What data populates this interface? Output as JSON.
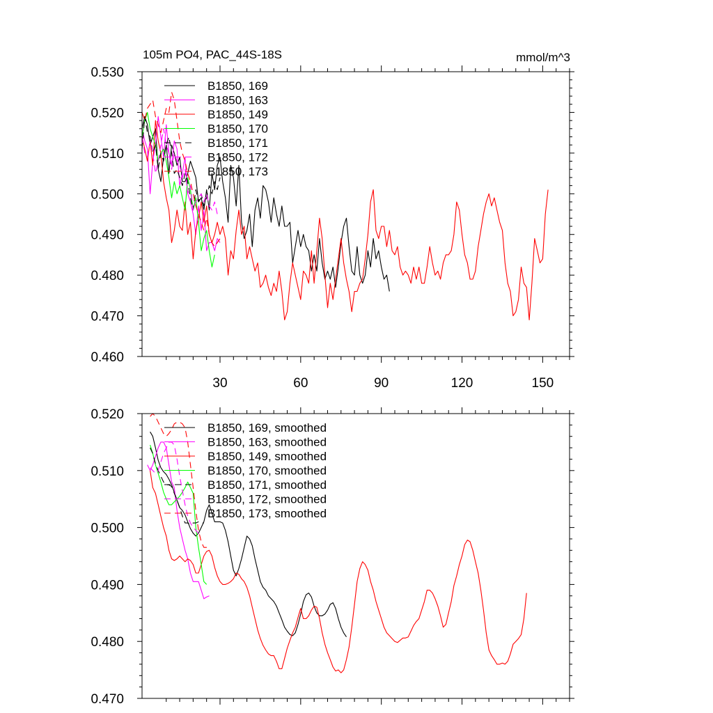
{
  "figure": {
    "title": "105m PO4, PAC_44S-18S",
    "units": "mmol/m^3"
  },
  "series_style": [
    {
      "run": "169",
      "color": "#000000",
      "dash": "solid"
    },
    {
      "run": "163",
      "color": "#ff00ff",
      "dash": "solid"
    },
    {
      "run": "149",
      "color": "#ff0000",
      "dash": "solid"
    },
    {
      "run": "170",
      "color": "#00ff00",
      "dash": "solid"
    },
    {
      "run": "171",
      "color": "#000000",
      "dash": "dashed"
    },
    {
      "run": "172",
      "color": "#ff00ff",
      "dash": "dashed"
    },
    {
      "run": "173",
      "color": "#ff0000",
      "dash": "dashed"
    }
  ],
  "chart_data": [
    {
      "type": "line",
      "title": "105m PO4, PAC_44S-18S",
      "units_label": "mmol/m^3",
      "xlabel": "",
      "ylabel": "",
      "xlim": [
        1,
        160
      ],
      "ylim": [
        0.46,
        0.53
      ],
      "xticks": [
        30,
        60,
        90,
        120,
        150
      ],
      "yticks": [
        "0.460",
        "0.470",
        "0.480",
        "0.490",
        "0.500",
        "0.510",
        "0.520",
        "0.530"
      ],
      "legend_position": "top-left",
      "series": [
        {
          "name": "B1850, 169",
          "x_start": 1,
          "values": [
            0.516,
            0.519,
            0.517,
            0.512,
            0.514,
            0.516,
            0.506,
            0.503,
            0.509,
            0.512,
            0.505,
            0.512,
            0.51,
            0.507,
            0.509,
            0.503,
            0.503,
            0.505,
            0.508,
            0.506,
            0.504,
            0.498,
            0.499,
            0.496,
            0.501,
            0.496,
            0.505,
            0.501,
            0.507,
            0.509,
            0.503,
            0.499,
            0.493,
            0.507,
            0.504,
            0.497,
            0.507,
            0.493,
            0.489,
            0.491,
            0.495,
            0.487,
            0.496,
            0.499,
            0.494,
            0.502,
            0.501,
            0.498,
            0.493,
            0.499,
            0.495,
            0.492,
            0.497,
            0.492,
            0.492,
            0.493,
            0.483,
            0.487,
            0.491,
            0.487,
            0.49,
            0.487,
            0.486,
            0.481,
            0.485,
            0.481,
            0.489,
            0.483,
            0.479,
            0.481,
            0.479,
            0.482,
            0.477,
            0.482,
            0.488,
            0.492,
            0.494,
            0.487,
            0.481,
            0.48,
            0.487,
            0.48,
            0.478,
            0.48,
            0.486,
            0.482,
            0.489,
            0.484,
            0.486,
            0.482,
            0.479,
            0.48,
            0.476
          ]
        },
        {
          "name": "B1850, 163",
          "x_start": 1,
          "values": [
            0.516,
            0.513,
            0.511,
            0.5,
            0.508,
            0.512,
            0.519,
            0.514,
            0.509,
            0.517,
            0.51,
            0.507,
            0.513,
            0.511,
            0.502,
            0.505,
            0.509,
            0.5,
            0.498,
            0.495,
            0.49,
            0.497,
            0.491,
            0.496,
            0.486,
            0.488,
            0.488,
            0.486,
            0.489,
            0.488
          ]
        },
        {
          "name": "B1850, 149",
          "x_start": 1,
          "values": [
            0.514,
            0.511,
            0.508,
            0.513,
            0.507,
            0.518,
            0.513,
            0.51,
            0.503,
            0.499,
            0.496,
            0.488,
            0.491,
            0.496,
            0.492,
            0.491,
            0.498,
            0.49,
            0.493,
            0.484,
            0.491,
            0.494,
            0.498,
            0.493,
            0.497,
            0.49,
            0.488,
            0.49,
            0.493,
            0.49,
            0.492,
            0.489,
            0.48,
            0.486,
            0.484,
            0.491,
            0.496,
            0.49,
            0.492,
            0.484,
            0.487,
            0.484,
            0.481,
            0.483,
            0.477,
            0.478,
            0.48,
            0.477,
            0.475,
            0.478,
            0.476,
            0.481,
            0.476,
            0.469,
            0.471,
            0.478,
            0.483,
            0.48,
            0.477,
            0.474,
            0.481,
            0.48,
            0.478,
            0.486,
            0.478,
            0.486,
            0.494,
            0.489,
            0.48,
            0.472,
            0.478,
            0.474,
            0.479,
            0.484,
            0.489,
            0.483,
            0.479,
            0.476,
            0.471,
            0.476,
            0.476,
            0.478,
            0.479,
            0.484,
            0.49,
            0.498,
            0.501,
            0.491,
            0.489,
            0.492,
            0.492,
            0.487,
            0.491,
            0.486,
            0.485,
            0.487,
            0.482,
            0.48,
            0.481,
            0.48,
            0.478,
            0.482,
            0.479,
            0.482,
            0.478,
            0.478,
            0.482,
            0.487,
            0.483,
            0.48,
            0.481,
            0.479,
            0.483,
            0.485,
            0.485,
            0.486,
            0.49,
            0.498,
            0.496,
            0.49,
            0.485,
            0.483,
            0.479,
            0.479,
            0.481,
            0.487,
            0.491,
            0.495,
            0.498,
            0.5,
            0.497,
            0.499,
            0.496,
            0.493,
            0.491,
            0.483,
            0.478,
            0.476,
            0.47,
            0.471,
            0.474,
            0.482,
            0.478,
            0.477,
            0.469,
            0.478,
            0.489,
            0.486,
            0.483,
            0.484,
            0.495,
            0.501
          ]
        },
        {
          "name": "B1850, 170",
          "x_start": 1,
          "values": [
            0.514,
            0.518,
            0.52,
            0.516,
            0.514,
            0.512,
            0.508,
            0.51,
            0.511,
            0.508,
            0.504,
            0.499,
            0.503,
            0.5,
            0.502,
            0.499,
            0.496,
            0.504,
            0.501,
            0.496,
            0.499,
            0.493,
            0.486,
            0.489,
            0.491,
            0.486,
            0.482,
            0.485
          ]
        },
        {
          "name": "B1850, 171",
          "x_start": 1,
          "values": [
            0.511,
            0.519,
            0.515,
            0.514,
            0.51,
            0.512,
            0.506,
            0.51,
            0.508,
            0.512,
            0.514,
            0.51,
            0.505,
            0.506,
            0.504,
            0.502,
            0.505,
            0.503,
            0.499,
            0.496,
            0.501,
            0.498,
            0.5,
            0.497,
            0.499,
            0.502,
            0.5,
            0.503,
            0.501,
            0.504
          ]
        },
        {
          "name": "B1850, 172",
          "x_start": 1,
          "values": [
            0.514,
            0.51,
            0.509,
            0.513,
            0.51,
            0.505,
            0.508,
            0.512,
            0.516,
            0.512,
            0.51,
            0.506,
            0.51,
            0.508,
            0.507,
            0.504,
            0.506,
            0.5,
            0.502,
            0.496,
            0.498,
            0.499,
            0.5,
            0.498,
            0.5,
            0.497,
            0.496,
            0.498,
            0.495
          ]
        },
        {
          "name": "B1850, 173",
          "x_start": 1,
          "values": [
            0.52,
            0.518,
            0.521,
            0.522,
            0.523,
            0.519,
            0.517,
            0.515,
            0.518,
            0.521,
            0.52,
            0.525,
            0.523,
            0.518,
            0.513,
            0.51,
            0.508,
            0.505,
            0.503,
            0.5,
            0.497,
            0.495,
            0.493,
            0.491,
            0.494,
            0.49,
            0.488,
            0.487,
            0.488,
            0.489
          ]
        }
      ]
    },
    {
      "type": "line",
      "title": "",
      "xlabel": "",
      "ylabel": "",
      "xlim": [
        1,
        160
      ],
      "ylim": [
        0.47,
        0.52
      ],
      "xticks": [
        30,
        60,
        90,
        120,
        150
      ],
      "yticks": [
        "0.470",
        "0.480",
        "0.490",
        "0.500",
        "0.510",
        "0.520"
      ],
      "legend_position": "top-left",
      "series": [
        {
          "name": "B1850, 169, smoothed",
          "x_start": 4,
          "values": [
            0.5168,
            0.516,
            0.514,
            0.5118,
            0.5105,
            0.5098,
            0.5093,
            0.5085,
            0.5075,
            0.5062,
            0.5048,
            0.5035,
            0.503,
            0.5022,
            0.501,
            0.4998,
            0.499,
            0.4985,
            0.499,
            0.5,
            0.501,
            0.503,
            0.504,
            0.5025,
            0.501,
            0.501,
            0.501,
            0.5008,
            0.4995,
            0.4975,
            0.495,
            0.4925,
            0.4915,
            0.4928,
            0.4945,
            0.4965,
            0.4985,
            0.498,
            0.4968,
            0.4945,
            0.4925,
            0.4905,
            0.4895,
            0.489,
            0.488,
            0.4875,
            0.487,
            0.4862,
            0.485,
            0.4838,
            0.4825,
            0.4818,
            0.4812,
            0.481,
            0.4815,
            0.483,
            0.4848,
            0.487,
            0.4882,
            0.4885,
            0.4878,
            0.4862,
            0.485,
            0.4845,
            0.4845,
            0.4848,
            0.4855,
            0.4865,
            0.4868,
            0.4858,
            0.484,
            0.4825,
            0.4815,
            0.4808
          ]
        },
        {
          "name": "B1850, 163, smoothed",
          "x_start": 3,
          "values": [
            0.511,
            0.51,
            0.511,
            0.5125,
            0.514,
            0.515,
            0.515,
            0.514,
            0.511,
            0.508,
            0.507,
            0.503,
            0.5,
            0.498,
            0.496,
            0.4945,
            0.492,
            0.4905,
            0.4905,
            0.4905,
            0.489,
            0.4875,
            0.4878,
            0.488
          ]
        },
        {
          "name": "B1850, 149, smoothed",
          "x_start": 4,
          "values": [
            0.51,
            0.507,
            0.506,
            0.504,
            0.502,
            0.5,
            0.4985,
            0.496,
            0.4945,
            0.4942,
            0.4945,
            0.495,
            0.4945,
            0.494,
            0.4945,
            0.4942,
            0.4935,
            0.492,
            0.492,
            0.4935,
            0.495,
            0.4958,
            0.496,
            0.495,
            0.493,
            0.4915,
            0.4905,
            0.49,
            0.49,
            0.4902,
            0.4905,
            0.491,
            0.492,
            0.4918,
            0.491,
            0.4905,
            0.4895,
            0.488,
            0.486,
            0.484,
            0.482,
            0.4805,
            0.4793,
            0.4785,
            0.4778,
            0.4775,
            0.4775,
            0.4765,
            0.4752,
            0.4752,
            0.477,
            0.4788,
            0.4802,
            0.4815,
            0.4825,
            0.4842,
            0.4858,
            0.484,
            0.484,
            0.4845,
            0.4855,
            0.4862,
            0.486,
            0.484,
            0.4815,
            0.4795,
            0.478,
            0.4768,
            0.4755,
            0.4748,
            0.475,
            0.4745,
            0.475,
            0.4768,
            0.479,
            0.4825,
            0.4865,
            0.4905,
            0.4928,
            0.494,
            0.4935,
            0.4925,
            0.4905,
            0.489,
            0.487,
            0.4855,
            0.484,
            0.4825,
            0.4815,
            0.481,
            0.4805,
            0.48,
            0.4798,
            0.4802,
            0.4806,
            0.4806,
            0.4808,
            0.4818,
            0.4828,
            0.4835,
            0.484,
            0.4855,
            0.487,
            0.489,
            0.489,
            0.4885,
            0.4875,
            0.4862,
            0.4845,
            0.4825,
            0.483,
            0.485,
            0.487,
            0.4898,
            0.4915,
            0.4935,
            0.495,
            0.497,
            0.4978,
            0.4975,
            0.496,
            0.494,
            0.492,
            0.489,
            0.4855,
            0.4815,
            0.4785,
            0.4775,
            0.4768,
            0.476,
            0.476,
            0.4762,
            0.476,
            0.4765,
            0.4778,
            0.4795,
            0.48,
            0.4805,
            0.4812,
            0.484,
            0.4885
          ]
        },
        {
          "name": "B1850, 170, smoothed",
          "x_start": 4,
          "values": [
            0.5145,
            0.513,
            0.511,
            0.5095,
            0.508,
            0.5062,
            0.505,
            0.504,
            0.504,
            0.5045,
            0.505,
            0.5055,
            0.5062,
            0.507,
            0.508,
            0.507,
            0.506,
            0.5,
            0.4965,
            0.4935,
            0.4905,
            0.49
          ]
        },
        {
          "name": "B1850, 171, smoothed",
          "x_start": 4,
          "values": [
            0.514,
            0.513,
            0.5112,
            0.51,
            0.509,
            0.508,
            0.5075,
            0.5075,
            0.5072,
            0.506,
            0.5048,
            0.5035,
            0.502,
            0.5008,
            0.5008,
            0.5005,
            0.5008,
            0.5008,
            0.501,
            0.5008,
            0.5008
          ]
        },
        {
          "name": "B1850, 172, smoothed",
          "x_start": 4,
          "values": [
            0.5105,
            0.51,
            0.5095,
            0.51,
            0.5115,
            0.513,
            0.514,
            0.515,
            0.515,
            0.5145,
            0.512,
            0.509,
            0.5065,
            0.504,
            0.502,
            0.5008,
            0.5,
            0.4995,
            0.499
          ]
        },
        {
          "name": "B1850, 173, smoothed",
          "x_start": 4,
          "values": [
            0.5195,
            0.52,
            0.5195,
            0.5185,
            0.5175,
            0.5165,
            0.516,
            0.5165,
            0.5172,
            0.5182,
            0.5185,
            0.5185,
            0.5182,
            0.5175,
            0.515,
            0.511,
            0.507,
            0.503,
            0.4995,
            0.4975,
            0.4965,
            0.4965,
            0.4962
          ]
        }
      ]
    }
  ]
}
